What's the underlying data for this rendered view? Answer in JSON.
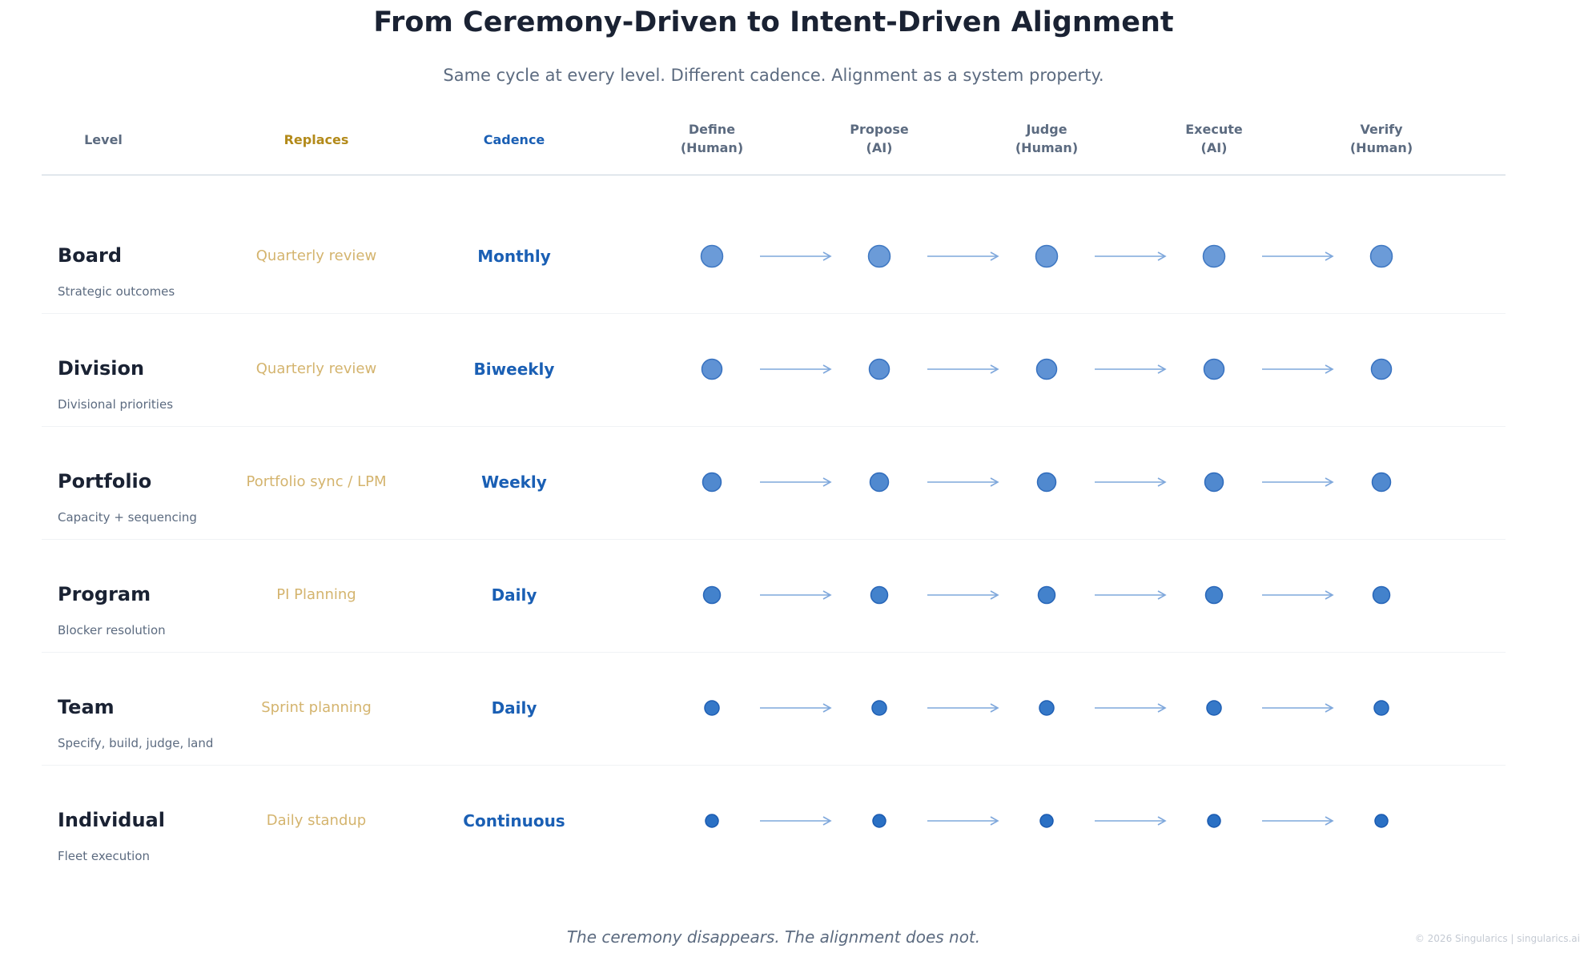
{
  "title": "From Ceremony-Driven to Intent-Driven Alignment",
  "subtitle": "Same cycle at every level. Different cadence. Alignment as a system property.",
  "headers": {
    "level": "Level",
    "replaces": "Replaces",
    "cadence": "Cadence",
    "steps": [
      {
        "name": "Define",
        "actor": "(Human)"
      },
      {
        "name": "Propose",
        "actor": "(AI)"
      },
      {
        "name": "Judge",
        "actor": "(Human)"
      },
      {
        "name": "Execute",
        "actor": "(AI)"
      },
      {
        "name": "Verify",
        "actor": "(Human)"
      }
    ]
  },
  "levels": [
    {
      "name": "Board",
      "description": "Strategic outcomes",
      "replaces": "Quarterly review",
      "cadence": "Monthly"
    },
    {
      "name": "Division",
      "description": "Divisional priorities",
      "replaces": "Quarterly review",
      "cadence": "Biweekly"
    },
    {
      "name": "Portfolio",
      "description": "Capacity + sequencing",
      "replaces": "Portfolio sync / LPM",
      "cadence": "Weekly"
    },
    {
      "name": "Program",
      "description": "Blocker resolution",
      "replaces": "PI Planning",
      "cadence": "Daily"
    },
    {
      "name": "Team",
      "description": "Specify, build, judge, land",
      "replaces": "Sprint planning",
      "cadence": "Daily"
    },
    {
      "name": "Individual",
      "description": "Fleet execution",
      "replaces": "Daily standup",
      "cadence": "Continuous"
    }
  ],
  "footer": "The ceremony disappears. The alignment does not.",
  "copyright": "© 2026 Singularics | singularics.ai",
  "colors": {
    "title": "#1a2233",
    "muted": "#5c6b80",
    "replaces": "#d4b46e",
    "replaces_header": "#b38a1a",
    "cadence": "#1a5fb4",
    "arrow": "#7fa8dc"
  }
}
